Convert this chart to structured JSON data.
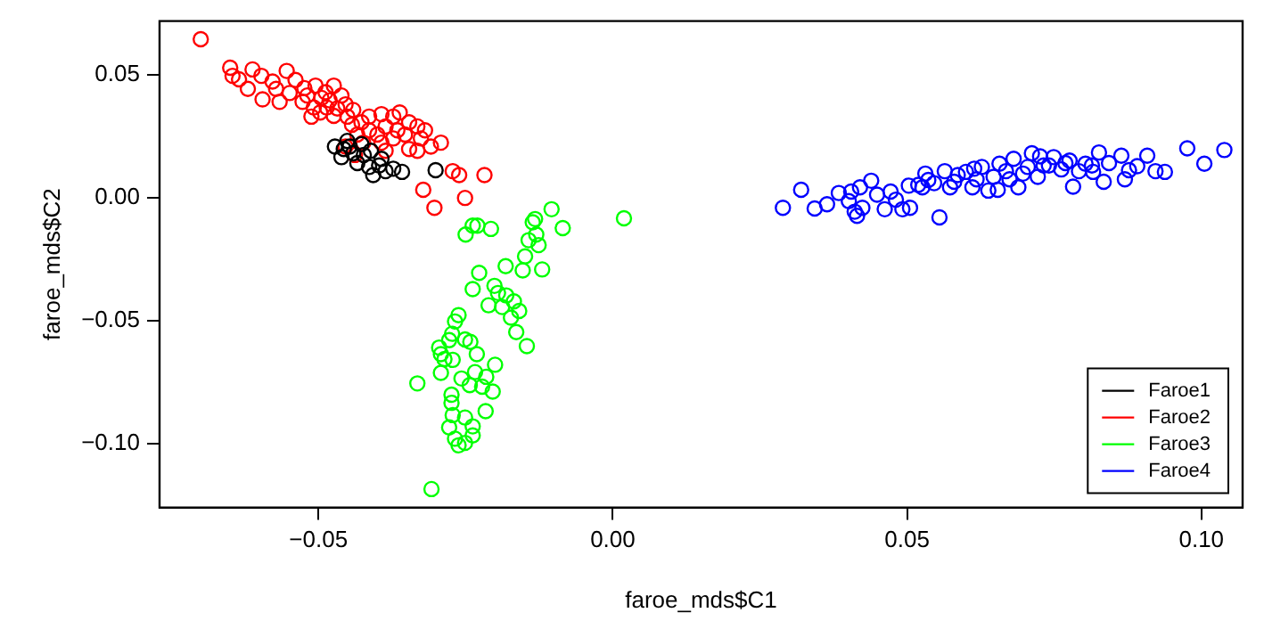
{
  "chart_data": {
    "type": "scatter",
    "xlabel": "faroe_mds$C1",
    "ylabel": "faroe_mds$C2",
    "xlim": [
      -0.077,
      0.107
    ],
    "ylim": [
      -0.126,
      0.072
    ],
    "xticks": [
      {
        "value": -0.05,
        "label": "−0.05"
      },
      {
        "value": 0,
        "label": "0.00"
      },
      {
        "value": 0.05,
        "label": "0.05"
      },
      {
        "value": 0.1,
        "label": "0.10"
      }
    ],
    "yticks": [
      {
        "value": -0.1,
        "label": "−0.10"
      },
      {
        "value": -0.05,
        "label": "−0.05"
      },
      {
        "value": 0,
        "label": "0.00"
      },
      {
        "value": 0.05,
        "label": "0.05"
      }
    ],
    "grid": false,
    "legend": "bottom right",
    "marker": "circle",
    "series": [
      {
        "name": "Faroe1",
        "color": "#000000",
        "x": [
          -0.0472,
          -0.0457,
          -0.0451,
          -0.0461,
          -0.0441,
          -0.0434,
          -0.0423,
          -0.0414,
          -0.0407,
          -0.0397,
          -0.0386,
          -0.0373,
          -0.0427,
          -0.0411,
          -0.0447,
          -0.0358,
          -0.0301,
          -0.0393
        ],
        "values": [
          0.0209,
          0.0199,
          0.0232,
          0.0166,
          0.0182,
          0.0142,
          0.0175,
          0.0126,
          0.0093,
          0.0132,
          0.0109,
          0.0119,
          0.0219,
          0.0192,
          0.0209,
          0.0106,
          0.0113,
          0.0159
        ]
      },
      {
        "name": "Faroe2",
        "color": "#ff0000",
        "x": [
          -0.07,
          -0.065,
          -0.0646,
          -0.0612,
          -0.0635,
          -0.062,
          -0.0597,
          -0.0578,
          -0.0554,
          -0.0595,
          -0.0566,
          -0.0572,
          -0.0539,
          -0.0524,
          -0.0549,
          -0.0527,
          -0.0505,
          -0.0488,
          -0.0474,
          -0.0519,
          -0.0495,
          -0.0508,
          -0.0512,
          -0.0497,
          -0.0481,
          -0.0461,
          -0.0468,
          -0.0451,
          -0.0474,
          -0.0486,
          -0.0454,
          -0.0441,
          -0.0427,
          -0.0414,
          -0.0393,
          -0.0373,
          -0.0362,
          -0.0346,
          -0.0332,
          -0.0386,
          -0.04,
          -0.0414,
          -0.0434,
          -0.0443,
          -0.0424,
          -0.0393,
          -0.0373,
          -0.0353,
          -0.0326,
          -0.0309,
          -0.0292,
          -0.0332,
          -0.0346,
          -0.0386,
          -0.0366,
          -0.0319,
          -0.0272,
          -0.0261,
          -0.0218,
          -0.0322,
          -0.0303,
          -0.0251,
          -0.0454,
          -0.0438
        ],
        "values": [
          0.0646,
          0.053,
          0.0497,
          0.0523,
          0.0483,
          0.0444,
          0.0497,
          0.0474,
          0.0517,
          0.0401,
          0.0391,
          0.0444,
          0.048,
          0.0447,
          0.0427,
          0.0391,
          0.0457,
          0.043,
          0.0457,
          0.0417,
          0.0407,
          0.0368,
          0.0331,
          0.0348,
          0.0397,
          0.0417,
          0.0364,
          0.0331,
          0.0334,
          0.0368,
          0.0381,
          0.0358,
          0.0308,
          0.0331,
          0.0341,
          0.0331,
          0.0348,
          0.0308,
          0.0291,
          0.0291,
          0.0258,
          0.0275,
          0.0258,
          0.0298,
          0.0225,
          0.0225,
          0.0242,
          0.0258,
          0.0242,
          0.0209,
          0.0225,
          0.0192,
          0.0199,
          0.0192,
          0.0275,
          0.0275,
          0.0109,
          0.0093,
          0.0093,
          0.0033,
          -0.004,
          0.0,
          0.0209,
          0.0175
        ]
      },
      {
        "name": "Faroe3",
        "color": "#00ff00",
        "x": [
          0.0019,
          -0.0104,
          -0.0085,
          -0.0132,
          -0.0136,
          -0.013,
          -0.0126,
          -0.0143,
          -0.0149,
          -0.0153,
          -0.012,
          -0.0182,
          -0.023,
          -0.0207,
          -0.0238,
          -0.025,
          -0.0227,
          -0.0238,
          -0.0201,
          -0.0195,
          -0.0211,
          -0.0188,
          -0.0168,
          -0.0159,
          -0.0173,
          -0.0181,
          -0.0164,
          -0.0146,
          -0.0262,
          -0.0268,
          -0.0273,
          -0.0278,
          -0.0292,
          -0.0286,
          -0.0332,
          -0.0295,
          -0.0272,
          -0.0251,
          -0.0242,
          -0.0231,
          -0.0257,
          -0.0243,
          -0.0234,
          -0.02,
          -0.0215,
          -0.0204,
          -0.0216,
          -0.0274,
          -0.0272,
          -0.0251,
          -0.0238,
          -0.0278,
          -0.0268,
          -0.0251,
          -0.0262,
          -0.0238,
          -0.0308,
          -0.0292,
          -0.0274,
          -0.0222
        ],
        "values": [
          -0.0083,
          -0.0046,
          -0.0123,
          -0.0086,
          -0.0099,
          -0.0149,
          -0.0192,
          -0.0172,
          -0.0238,
          -0.0295,
          -0.0291,
          -0.0278,
          -0.0113,
          -0.0126,
          -0.0113,
          -0.0149,
          -0.0305,
          -0.0371,
          -0.0358,
          -0.0387,
          -0.0437,
          -0.0444,
          -0.0421,
          -0.046,
          -0.0487,
          -0.0397,
          -0.0546,
          -0.0603,
          -0.0477,
          -0.0503,
          -0.0553,
          -0.0579,
          -0.0636,
          -0.0656,
          -0.0755,
          -0.0609,
          -0.0659,
          -0.0576,
          -0.0586,
          -0.0636,
          -0.0735,
          -0.0762,
          -0.0709,
          -0.0679,
          -0.0728,
          -0.0788,
          -0.0868,
          -0.0834,
          -0.0884,
          -0.0894,
          -0.093,
          -0.0934,
          -0.098,
          -0.0997,
          -0.1007,
          -0.0967,
          -0.1185,
          -0.0712,
          -0.0801,
          -0.0768
        ]
      },
      {
        "name": "Faroe4",
        "color": "#0000ff",
        "x": [
          0.0289,
          0.032,
          0.0343,
          0.0364,
          0.0384,
          0.0405,
          0.0401,
          0.0411,
          0.0415,
          0.0424,
          0.0439,
          0.0449,
          0.0462,
          0.0472,
          0.0481,
          0.0492,
          0.0505,
          0.0503,
          0.0519,
          0.0531,
          0.0536,
          0.0546,
          0.0555,
          0.0564,
          0.0573,
          0.058,
          0.0586,
          0.06,
          0.0611,
          0.0618,
          0.0627,
          0.0638,
          0.0647,
          0.0657,
          0.0668,
          0.0674,
          0.0681,
          0.0689,
          0.0697,
          0.0705,
          0.0712,
          0.0722,
          0.0732,
          0.0741,
          0.0749,
          0.0762,
          0.0776,
          0.0782,
          0.0792,
          0.0803,
          0.0814,
          0.0826,
          0.0834,
          0.0843,
          0.0864,
          0.087,
          0.0877,
          0.0891,
          0.0908,
          0.0922,
          0.0938,
          0.0976,
          0.1005,
          0.1039,
          0.042,
          0.0526,
          0.0614,
          0.0654,
          0.0726,
          0.0769,
          0.0816
        ],
        "values": [
          -0.004,
          0.0033,
          -0.0043,
          -0.0026,
          0.002,
          0.0026,
          -0.0013,
          -0.0056,
          -0.0073,
          -0.004,
          0.007,
          0.0013,
          -0.0046,
          0.0026,
          -0.0007,
          -0.0046,
          -0.004,
          0.005,
          0.0053,
          0.0099,
          0.0073,
          0.006,
          -0.0079,
          0.0109,
          0.0043,
          0.0066,
          0.0093,
          0.0106,
          0.0043,
          0.0076,
          0.0126,
          0.003,
          0.0086,
          0.0139,
          0.0109,
          0.0076,
          0.0159,
          0.0043,
          0.0099,
          0.0126,
          0.0182,
          0.0086,
          0.0132,
          0.0132,
          0.0166,
          0.0116,
          0.0152,
          0.0046,
          0.0109,
          0.0139,
          0.0132,
          0.0185,
          0.0066,
          0.0142,
          0.0172,
          0.0076,
          0.0113,
          0.0129,
          0.0172,
          0.0109,
          0.0106,
          0.0202,
          0.0139,
          0.0195,
          0.0043,
          0.0043,
          0.0119,
          0.0033,
          0.0169,
          0.0142,
          0.0106
        ]
      }
    ]
  }
}
